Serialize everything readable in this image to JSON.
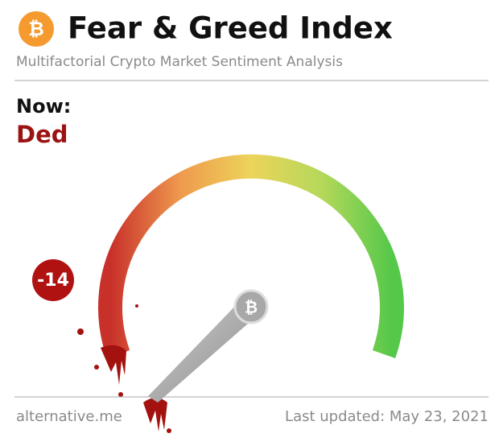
{
  "header": {
    "title": "Fear & Greed Index",
    "subtitle": "Multifactorial Crypto Market Sentiment Analysis"
  },
  "now": {
    "label": "Now:",
    "status": "Ded"
  },
  "gauge": {
    "value": -14
  },
  "footer": {
    "source": "alternative.me",
    "updated": "Last updated: May 23, 2021"
  }
}
